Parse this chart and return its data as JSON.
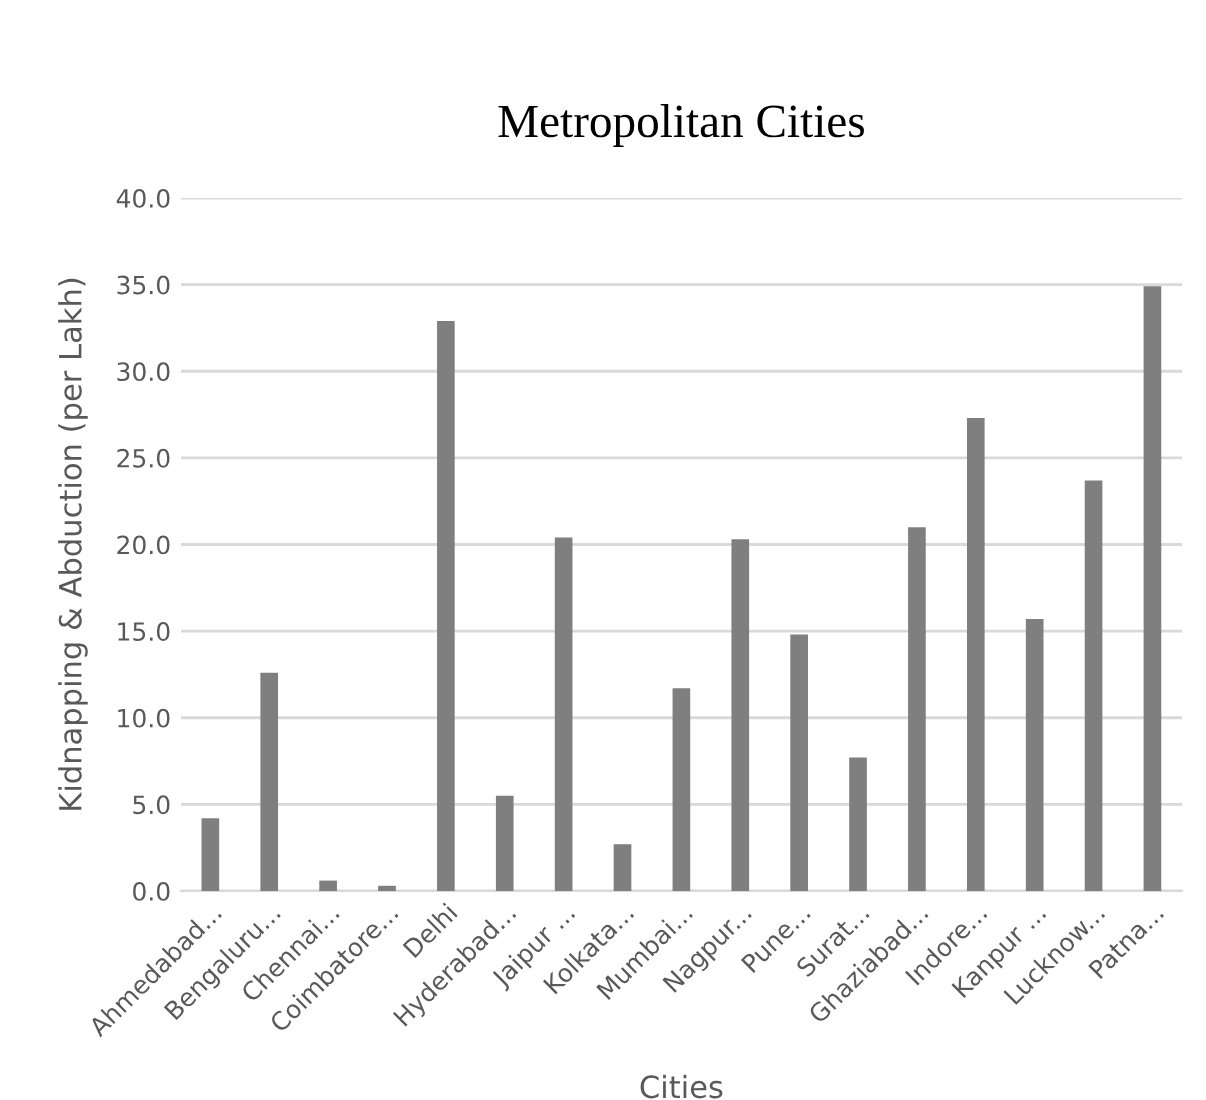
{
  "chart_data": {
    "type": "bar",
    "title": "Metropolitan Cities",
    "xlabel": "Cities",
    "ylabel": "Kidnapping & Abduction (per Lakh)",
    "categories": [
      "Ahmedabad...",
      "Bengaluru...",
      "Chennai...",
      "Coimbatore...",
      "Delhi",
      "Hyderabad...",
      "Jaipur ...",
      "Kolkata...",
      "Mumbai...",
      "Nagpur...",
      "Pune...",
      "Surat...",
      "Ghaziabad...",
      "Indore...",
      "Kanpur ...",
      "Lucknow...",
      "Patna..."
    ],
    "values": [
      4.2,
      12.6,
      0.6,
      0.3,
      32.9,
      5.5,
      20.4,
      2.7,
      11.7,
      20.3,
      14.8,
      7.7,
      21.0,
      27.3,
      15.7,
      23.7,
      34.9
    ],
    "color": "#7f7f7f",
    "ylim": [
      0,
      40
    ],
    "yticks": [
      {
        "value": 0,
        "label": "0.0"
      },
      {
        "value": 5,
        "label": "5.0"
      },
      {
        "value": 10,
        "label": "10.0"
      },
      {
        "value": 15,
        "label": "15.0"
      },
      {
        "value": 20,
        "label": "20.0"
      },
      {
        "value": 25,
        "label": "25.0"
      },
      {
        "value": 30,
        "label": "30.0"
      },
      {
        "value": 35,
        "label": "35.0"
      },
      {
        "value": 40,
        "label": "40.0"
      }
    ],
    "grid": "y"
  }
}
